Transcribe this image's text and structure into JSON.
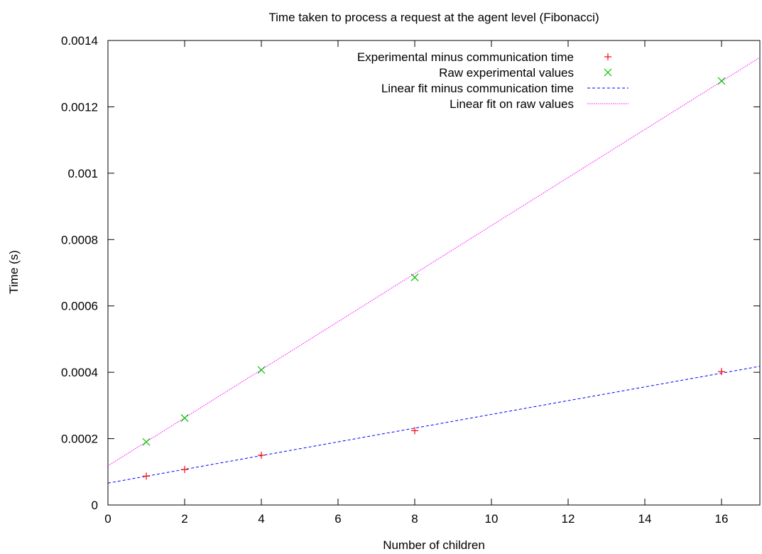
{
  "chart_data": {
    "type": "scatter",
    "title": "Time taken to process a request at the agent level (Fibonacci)",
    "xlabel": "Number of children",
    "ylabel": "Time (s)",
    "xlim": [
      0,
      17
    ],
    "ylim": [
      0,
      0.0014
    ],
    "x_ticks": [
      0,
      2,
      4,
      6,
      8,
      10,
      12,
      14,
      16
    ],
    "x_tick_labels": [
      "0",
      "2",
      "4",
      "6",
      "8",
      "10",
      "12",
      "14",
      "16"
    ],
    "y_ticks": [
      0,
      0.0002,
      0.0004,
      0.0006,
      0.0008,
      0.001,
      0.0012,
      0.0014
    ],
    "y_tick_labels": [
      "0",
      "0.0002",
      "0.0004",
      "0.0006",
      "0.0008",
      "0.001",
      "0.0012",
      "0.0014"
    ],
    "grid": false,
    "legend_position": "top-right",
    "series": [
      {
        "name": "Experimental minus communication time",
        "kind": "points",
        "marker": "plus",
        "color": "#ff0000",
        "x": [
          1,
          2,
          4,
          8,
          16
        ],
        "y": [
          8.7e-05,
          0.000107,
          0.00015,
          0.000224,
          0.000402
        ]
      },
      {
        "name": "Raw experimental values",
        "kind": "points",
        "marker": "cross",
        "color": "#00c000",
        "x": [
          1,
          2,
          4,
          8,
          16
        ],
        "y": [
          0.00019,
          0.000262,
          0.000407,
          0.000686,
          0.001278
        ]
      },
      {
        "name": "Linear fit minus communication time",
        "kind": "line",
        "dash": "dashed",
        "color": "#0000ff",
        "x": [
          0,
          17
        ],
        "y": [
          6.6e-05,
          0.000418
        ]
      },
      {
        "name": "Linear fit on raw values",
        "kind": "line",
        "dash": "dotted",
        "color": "#ff00ff",
        "x": [
          0,
          17
        ],
        "y": [
          0.000118,
          0.001349
        ]
      }
    ]
  }
}
